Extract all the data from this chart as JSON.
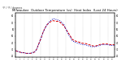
{
  "title": "Milwaukee  Outdoor Temperature (vs)  Heat Index  (Last 24 Hours)",
  "subtitle": "°F / °F / degrees",
  "bg_color": "#ffffff",
  "plot_bg_color": "#ffffff",
  "grid_color": "#888888",
  "temp_color": "#dd0000",
  "heat_color": "#0000bb",
  "ylim": [
    18,
    85
  ],
  "xlim": [
    0,
    47
  ],
  "title_fontsize": 2.8,
  "subtitle_fontsize": 2.2,
  "temp_data": [
    28,
    27,
    26,
    25,
    25,
    24,
    24,
    24,
    25,
    26,
    30,
    38,
    46,
    55,
    62,
    67,
    70,
    72,
    73,
    72,
    72,
    71,
    68,
    65,
    60,
    55,
    50,
    45,
    43,
    42,
    41,
    40,
    39,
    39,
    38,
    37,
    36,
    35,
    35,
    36,
    37,
    38,
    38,
    38,
    38,
    37,
    37,
    37
  ],
  "heat_data": [
    28,
    27,
    26,
    25,
    25,
    24,
    24,
    24,
    25,
    26,
    30,
    38,
    46,
    55,
    62,
    67,
    71,
    74,
    76,
    75,
    74,
    73,
    70,
    67,
    60,
    53,
    48,
    43,
    41,
    40,
    39,
    38,
    37,
    37,
    36,
    35,
    34,
    34,
    34,
    35,
    36,
    37,
    37,
    37,
    37,
    36,
    36,
    36
  ],
  "xtick_interval": 2,
  "yticks": [
    20,
    30,
    40,
    50,
    60,
    70,
    80
  ],
  "vgrid_interval": 4
}
